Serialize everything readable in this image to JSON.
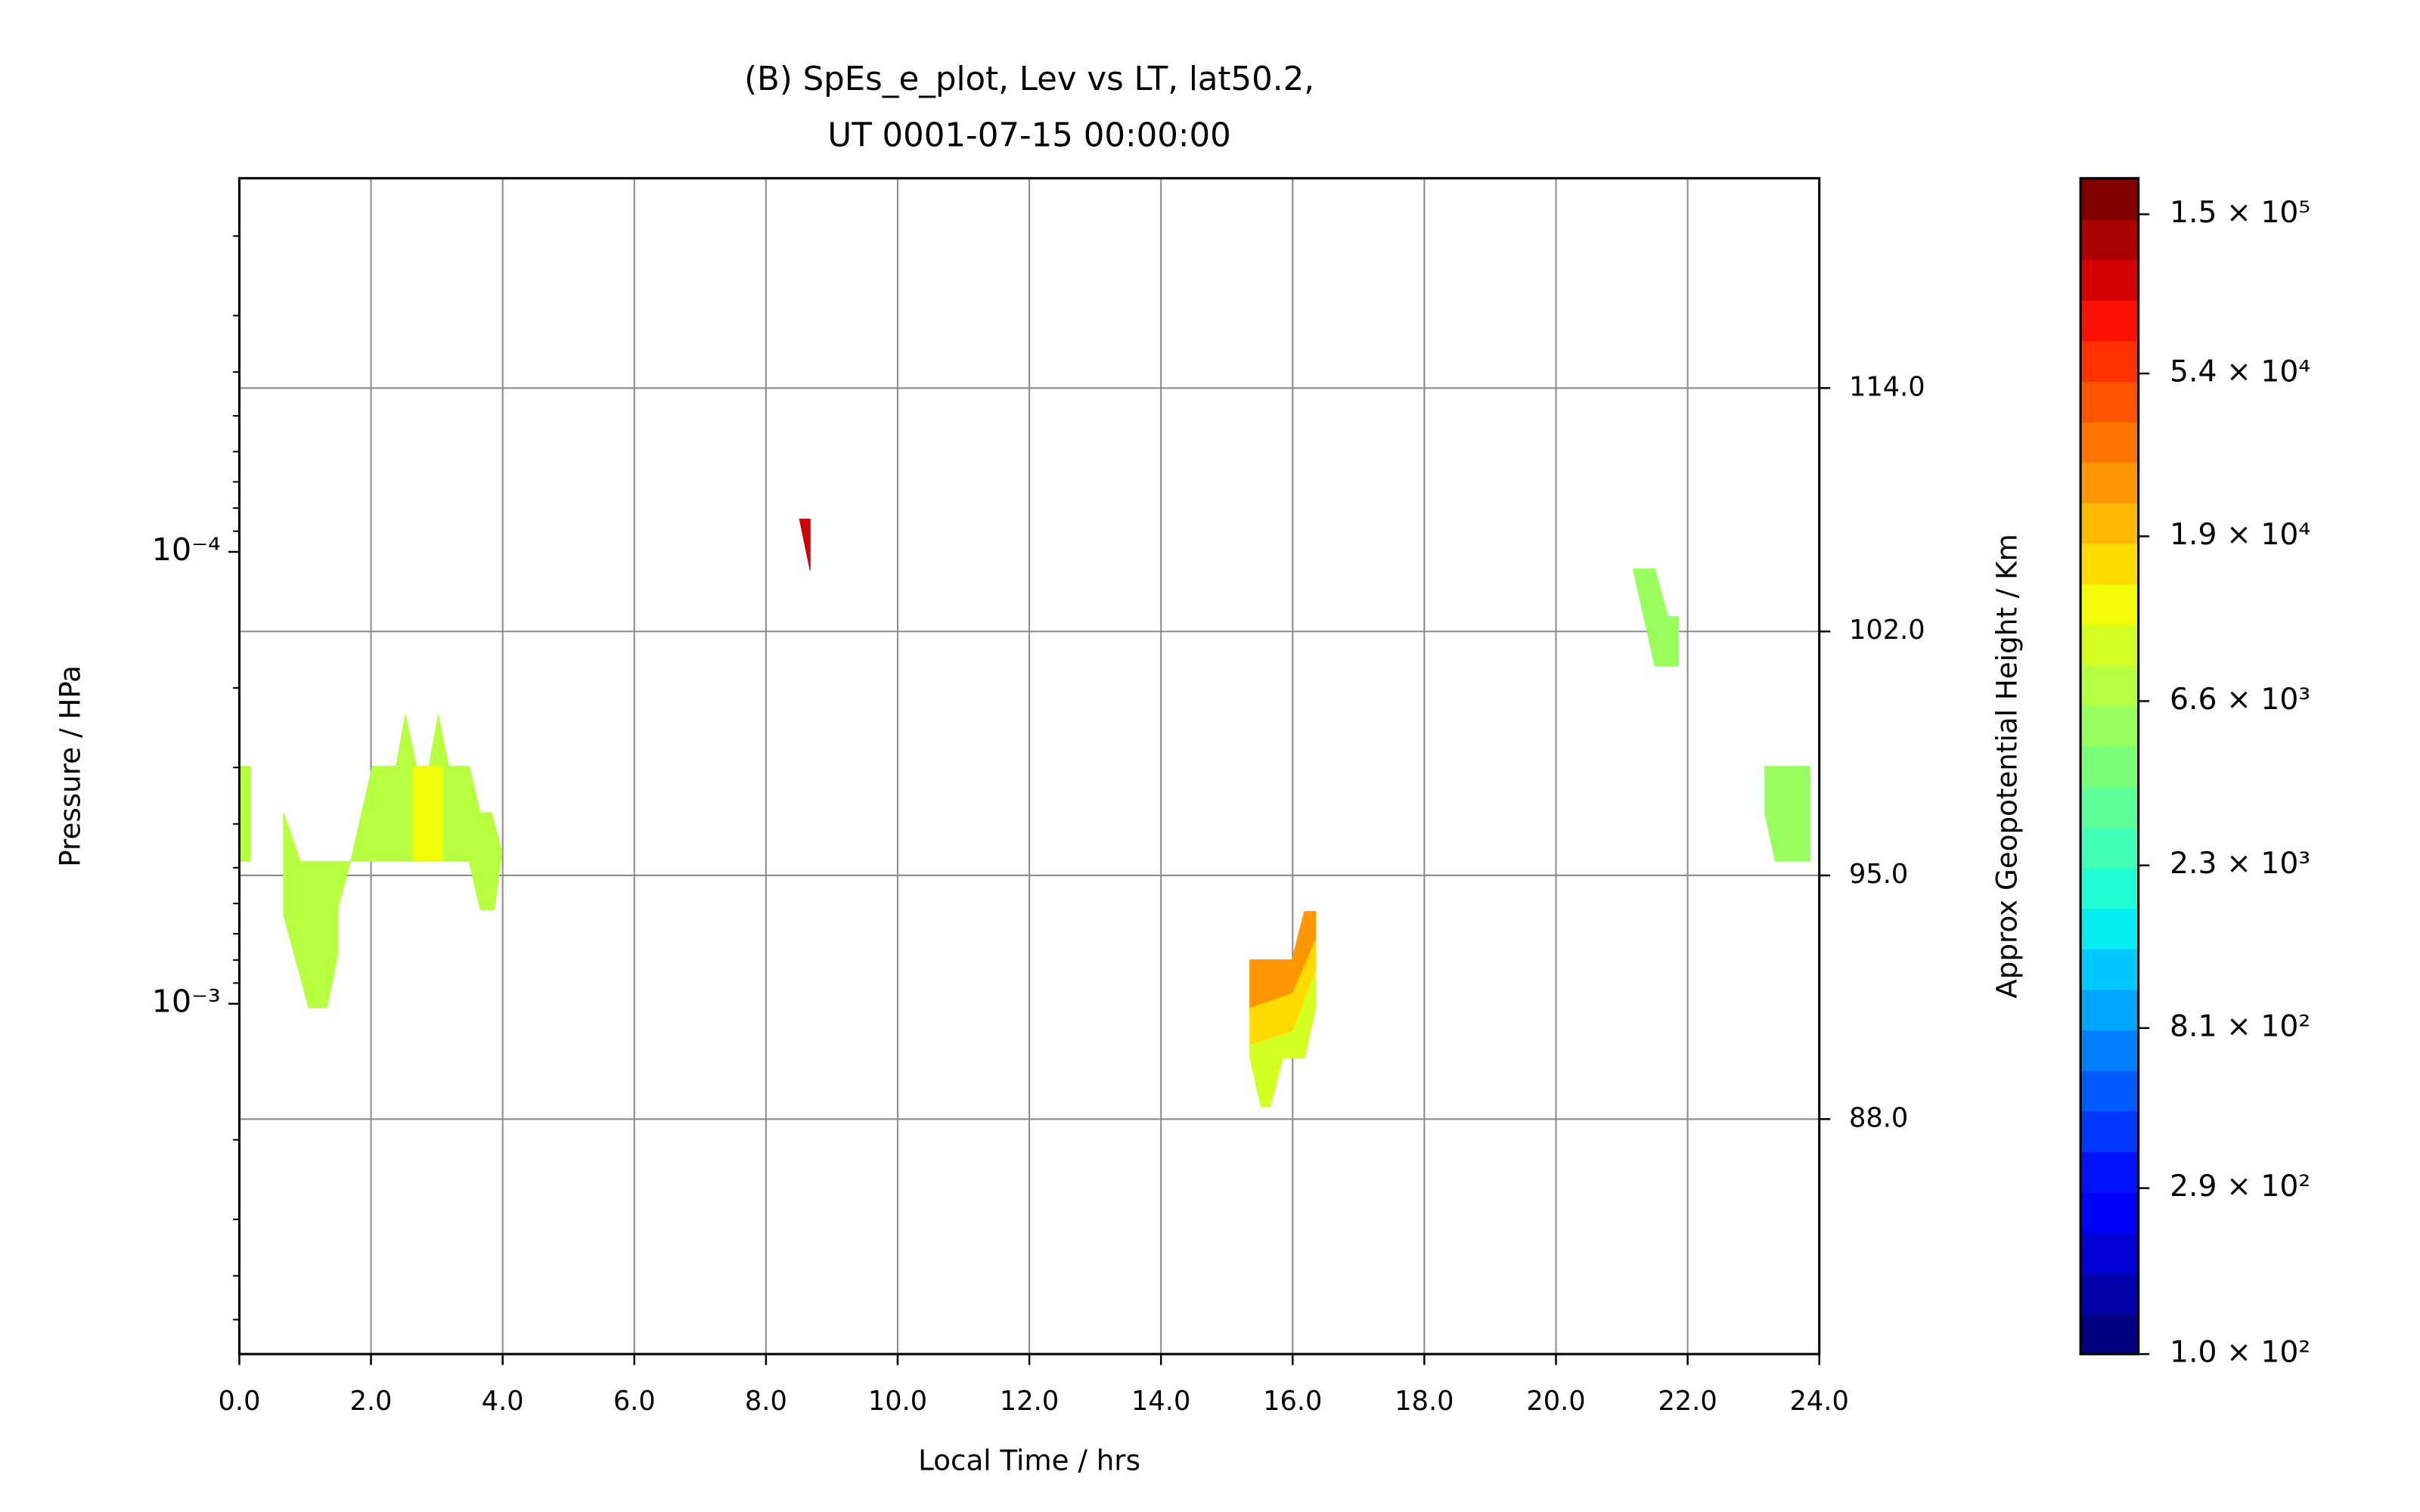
{
  "chart_data": {
    "type": "contourf",
    "title": "(B) SpEs_e_plot, Lev vs LT, lat50.2,",
    "subtitle": "UT 0001-07-15 00:00:00",
    "x_label": "Local Time / hrs",
    "y_label": "Pressure / HPa",
    "y2_label": "Approx Geopotential Height / Km",
    "xlim": [
      0,
      24
    ],
    "xticks": [
      {
        "value": 0,
        "label": "0.0"
      },
      {
        "value": 2,
        "label": "2.0"
      },
      {
        "value": 4,
        "label": "4.0"
      },
      {
        "value": 6,
        "label": "6.0"
      },
      {
        "value": 8,
        "label": "8.0"
      },
      {
        "value": 10,
        "label": "10.0"
      },
      {
        "value": 12,
        "label": "12.0"
      },
      {
        "value": 14,
        "label": "14.0"
      },
      {
        "value": 16,
        "label": "16.0"
      },
      {
        "value": 18,
        "label": "18.0"
      },
      {
        "value": 20,
        "label": "20.0"
      },
      {
        "value": 22,
        "label": "22.0"
      },
      {
        "value": 24,
        "label": "24.0"
      }
    ],
    "ylim": [
      0.00596,
      1.49e-05
    ],
    "log_y": true,
    "yticks": [
      {
        "value": 0.0001,
        "label": "10⁻⁴"
      },
      {
        "value": 0.001,
        "label": "10⁻³"
      }
    ],
    "yminorticks": [
      2e-05,
      3e-05,
      4e-05,
      5e-05,
      6e-05,
      7e-05,
      8e-05,
      9e-05,
      0.0002,
      0.0003,
      0.0004,
      0.0005,
      0.0006,
      0.0007,
      0.0008,
      0.0009,
      0.002,
      0.003,
      0.004,
      0.005
    ],
    "y2ticks": [
      {
        "value": 114.0,
        "label": "114.0",
        "pressure": 4.34e-05
      },
      {
        "value": 102.0,
        "label": "102.0",
        "pressure": 0.00015
      },
      {
        "value": 95.0,
        "label": "95.0",
        "pressure": 0.00052
      },
      {
        "value": 88.0,
        "label": "88.0",
        "pressure": 0.0018
      }
    ],
    "grid": true,
    "colormap": "jet",
    "colorbar": {
      "lim": [
        100,
        189000
      ],
      "n_levels": 29,
      "log": true,
      "ticks": [
        {
          "value": 100,
          "label": "1.0 × 10²"
        },
        {
          "value": 290,
          "label": "2.9 × 10²"
        },
        {
          "value": 810,
          "label": "8.1 × 10²"
        },
        {
          "value": 2300,
          "label": "2.3 × 10³"
        },
        {
          "value": 6600,
          "label": "6.6 × 10³"
        },
        {
          "value": 19000,
          "label": "1.9 × 10⁴"
        },
        {
          "value": 54000,
          "label": "5.4 × 10⁴"
        },
        {
          "value": 150000,
          "label": "1.5 × 10⁵"
        }
      ]
    },
    "patches": [
      {
        "level": 8000,
        "x": [
          0,
          0.17,
          0.17,
          0
        ],
        "y": [
          0.000298,
          0.000298,
          0.000484,
          0.000484
        ]
      },
      {
        "level": 8000,
        "x": [
          0.67,
          0.93,
          1.69,
          2.02,
          2.38,
          2.52,
          2.69,
          2.88,
          3.02,
          3.18,
          3.49,
          3.66,
          3.83,
          3.99,
          3.87,
          3.66,
          3.49,
          1.69,
          1.5,
          1.5,
          1.33,
          1.05,
          0.67
        ],
        "y": [
          0.000378,
          0.000484,
          0.000484,
          0.000298,
          0.000298,
          0.000229,
          0.000298,
          0.000298,
          0.000229,
          0.000298,
          0.000298,
          0.000378,
          0.000378,
          0.000462,
          0.00062,
          0.00062,
          0.000484,
          0.000484,
          0.00061,
          0.000775,
          0.00102,
          0.00102,
          0.000635
        ]
      },
      {
        "level": 13000,
        "x": [
          2.64,
          3.09,
          3.09,
          2.64
        ],
        "y": [
          0.000298,
          0.000298,
          0.000484,
          0.000484
        ]
      },
      {
        "level": 90000,
        "x": [
          8.51,
          8.67,
          8.67
        ],
        "y": [
          8.46e-05,
          8.46e-05,
          0.00011
        ]
      },
      {
        "level": 6000,
        "x": [
          21.17,
          21.5,
          21.7,
          21.86,
          21.86,
          21.5,
          21.36
        ],
        "y": [
          0.000109,
          0.000109,
          0.000139,
          0.000139,
          0.000179,
          0.000179,
          0.000145
        ]
      },
      {
        "level": 6000,
        "x": [
          23.17,
          23.86,
          23.86,
          23.33,
          23.17
        ],
        "y": [
          0.000298,
          0.000298,
          0.000484,
          0.000484,
          0.000378
        ]
      },
      {
        "level": 9000,
        "x": [
          15.35,
          15.99,
          16.18,
          16.35,
          16.35,
          16.18,
          15.85,
          15.66,
          15.52,
          15.35
        ],
        "y": [
          0.0008,
          0.0008,
          0.000625,
          0.000625,
          0.00102,
          0.00132,
          0.00132,
          0.00169,
          0.00169,
          0.00132
        ]
      },
      {
        "level": 15000,
        "x": [
          15.35,
          15.99,
          16.18,
          16.35,
          16.35,
          15.99,
          15.35
        ],
        "y": [
          0.0008,
          0.0008,
          0.000625,
          0.000625,
          0.00084,
          0.00115,
          0.00123
        ]
      },
      {
        "level": 25000,
        "x": [
          15.35,
          15.99,
          16.18,
          16.35,
          16.35,
          15.99,
          15.35
        ],
        "y": [
          0.0008,
          0.0008,
          0.000625,
          0.000625,
          0.000716,
          0.000946,
          0.00102
        ]
      }
    ]
  }
}
